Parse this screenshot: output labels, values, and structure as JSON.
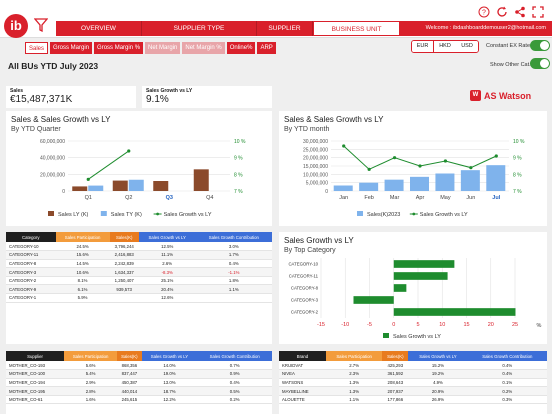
{
  "header": {
    "logo": "ib",
    "tabs": [
      {
        "label": "OVERVIEW",
        "active": false
      },
      {
        "label": "SUPPLIER TYPE",
        "active": false
      },
      {
        "label": "SUPPLIER",
        "active": false
      },
      {
        "label": "BUSINESS UNIT",
        "active": true
      }
    ],
    "welcome": "Welcome : ibdashboarddemouser2@hotmail.com",
    "icons": [
      "help-icon",
      "refresh-icon",
      "share-icon",
      "expand-icon"
    ]
  },
  "subtabs": [
    {
      "label": "Sales",
      "state": "selected"
    },
    {
      "label": "Gross Margin",
      "state": "normal"
    },
    {
      "label": "Gross Margin %",
      "state": "normal"
    },
    {
      "label": "Net Margin",
      "state": "disabled"
    },
    {
      "label": "Net Margin %",
      "state": "disabled"
    },
    {
      "label": "Online%",
      "state": "normal"
    },
    {
      "label": "ARP",
      "state": "normal"
    }
  ],
  "currency": {
    "options": [
      "EUR",
      "HKD",
      "USD"
    ],
    "selected": "EUR"
  },
  "toggles": {
    "constant_ex_rate": "Constant EX Rate",
    "show_other_cat": "Show Other Cat."
  },
  "page_title": "All BUs YTD July 2023",
  "kpis": [
    {
      "label": "Sales",
      "value": "€15,487,371K"
    },
    {
      "label": "Sales Growth vs LY",
      "value": "9.1%"
    }
  ],
  "brand": {
    "name": "AS Watson",
    "mark": "W"
  },
  "colors": {
    "accent": "#d9202b",
    "ly": "#8b4a2b",
    "ty": "#7fb3ec",
    "growth": "#1e8c2e"
  },
  "chart1": {
    "title": "Sales & Sales Growth vs LY",
    "subtitle": "By YTD Quarter",
    "chart_data": {
      "type": "bar",
      "categories": [
        "Q1",
        "Q2",
        "Q3",
        "Q4"
      ],
      "highlight": "Q3",
      "series": [
        {
          "name": "Sales LY (K)",
          "values": [
            5500000,
            12500000,
            12000000,
            26000000
          ]
        },
        {
          "name": "Sales TY (K)",
          "values": [
            6500000,
            13500000,
            0,
            0
          ]
        },
        {
          "name": "Sales Growth vs LY",
          "axis": "right",
          "values": [
            7.7,
            9.4,
            null,
            null
          ]
        }
      ],
      "ylim": [
        0,
        60000000
      ],
      "ylim_right": [
        7,
        10
      ],
      "yticks": [
        "0",
        "20,000,000",
        "40,000,000",
        "60,000,000"
      ],
      "yticks_right": [
        "7 %",
        "8 %",
        "9 %",
        "10 %"
      ],
      "legend": "bottom"
    }
  },
  "chart2": {
    "title": "Sales & Sales Growth vs LY",
    "subtitle": "By YTD month",
    "chart_data": {
      "type": "bar",
      "categories": [
        "Jan",
        "Feb",
        "Mar",
        "Apr",
        "May",
        "Jun",
        "Jul"
      ],
      "highlight": "Jul",
      "series": [
        {
          "name": "Sales(K)2023",
          "values": [
            3300000,
            5000000,
            6800000,
            8500000,
            10500000,
            12500000,
            15500000
          ]
        },
        {
          "name": "Sales Growth vs LY",
          "axis": "right",
          "values": [
            9.7,
            8.3,
            9.0,
            8.5,
            8.8,
            8.4,
            9.1
          ]
        }
      ],
      "ylim": [
        0,
        30000000
      ],
      "ylim_right": [
        7,
        10
      ],
      "yticks": [
        "0",
        "5,000,000",
        "10,000,000",
        "15,000,000",
        "20,000,000",
        "25,000,000",
        "30,000,000"
      ],
      "yticks_right": [
        "7 %",
        "8 %",
        "9 %",
        "10 %"
      ],
      "legend": "bottom"
    }
  },
  "chart3": {
    "title": "Sales Growth vs LY",
    "subtitle": "By Top Category",
    "chart_data": {
      "type": "bar",
      "orientation": "horizontal",
      "categories": [
        "CATEGORY-10",
        "CATEGORY-11",
        "CATEGORY-8",
        "CATEGORY-3",
        "CATEGORY-2"
      ],
      "series": [
        {
          "name": "Sales Growth vs LY",
          "values": [
            12.5,
            11.1,
            2.6,
            -8.3,
            25.1
          ]
        }
      ],
      "xlim": [
        -15,
        25
      ],
      "xticks": [
        "-15",
        "-10",
        "-5",
        "0",
        "5",
        "10",
        "15",
        "20",
        "25"
      ],
      "xunit": "%",
      "legend": "bottom"
    }
  },
  "table1": {
    "columns": [
      "Category",
      "Sales Participation",
      "Sales(K)",
      "Sales Growth vs LY",
      "Sales Growth Contribution"
    ],
    "rows": [
      [
        "CATEGORY-10",
        "24.5%",
        "3,796,244",
        "12.5%",
        "3.0%"
      ],
      [
        "CATEGORY-11",
        "15.6%",
        "2,416,883",
        "11.1%",
        "1.7%"
      ],
      [
        "CATEGORY-8",
        "14.5%",
        "2,242,839",
        "2.6%",
        "0.4%"
      ],
      [
        "CATEGORY-3",
        "10.6%",
        "1,634,337",
        "-8.3%",
        "-1.1%"
      ],
      [
        "CATEGORY-2",
        "8.1%",
        "1,250,407",
        "25.1%",
        "1.8%"
      ],
      [
        "CATEGORY-9",
        "6.1%",
        "939,573",
        "20.4%",
        "1.1%"
      ],
      [
        "CATEGORY-1",
        "5.9%",
        "",
        "12.6%",
        ""
      ]
    ]
  },
  "table2": {
    "columns": [
      "Supplier",
      "Sales Participation",
      "Sales(K)",
      "Sales Growth vs LY",
      "Sales Growth Contribution"
    ],
    "rows": [
      [
        "MOTHER_CO-193",
        "5.6%",
        "868,356",
        "14.0%",
        "0.7%"
      ],
      [
        "MOTHER_CO-100",
        "5.4%",
        "837,447",
        "19.0%",
        "0.9%"
      ],
      [
        "MOTHER_CO-194",
        "2.9%",
        "450,387",
        "13.0%",
        "0.4%"
      ],
      [
        "MOTHER_CO-195",
        "2.8%",
        "440,014",
        "18.7%",
        "0.5%"
      ],
      [
        "MOTHER_CO-61",
        "1.6%",
        "245,615",
        "12.2%",
        "0.2%"
      ]
    ]
  },
  "table3": {
    "columns": [
      "Brand",
      "Sales Participation",
      "Sales(K)",
      "Sales Growth vs LY",
      "Sales Growth Contribution"
    ],
    "rows": [
      [
        "KRUIDVAT",
        "2.7%",
        "425,293",
        "15.2%",
        "0.4%"
      ],
      [
        "NIVEA",
        "2.3%",
        "361,592",
        "19.2%",
        "0.4%"
      ],
      [
        "WATSONS",
        "1.3%",
        "208,643",
        "4.9%",
        "0.1%"
      ],
      [
        "MAYBELLINE",
        "1.3%",
        "207,937",
        "20.9%",
        "0.2%"
      ],
      [
        "ALOUETTE",
        "1.1%",
        "177,866",
        "26.9%",
        "0.3%"
      ]
    ]
  }
}
